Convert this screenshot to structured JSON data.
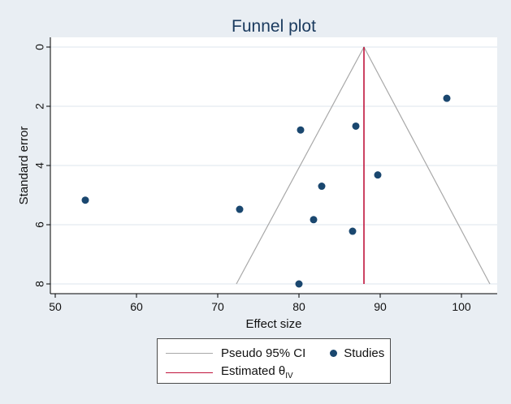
{
  "chart_data": {
    "type": "scatter",
    "title": "Funnel plot",
    "xlabel": "Effect size",
    "ylabel": "Standard error",
    "xlim": [
      50,
      103.5
    ],
    "ylim": [
      0,
      8
    ],
    "y_reversed": true,
    "xticks": [
      50,
      60,
      70,
      80,
      90,
      100
    ],
    "yticks": [
      0,
      2,
      4,
      6,
      8
    ],
    "grid": true,
    "legend_position": "bottom",
    "pooled_estimate": 88.0,
    "funnel": {
      "apex": [
        88.0,
        0
      ],
      "left_base": [
        72.3,
        8
      ],
      "right_base": [
        103.5,
        8
      ]
    },
    "series": [
      {
        "name": "Studies",
        "points": [
          {
            "x": 98.2,
            "y": 1.73
          },
          {
            "x": 87.0,
            "y": 2.67
          },
          {
            "x": 80.2,
            "y": 2.8
          },
          {
            "x": 89.7,
            "y": 4.32
          },
          {
            "x": 82.8,
            "y": 4.7
          },
          {
            "x": 53.7,
            "y": 5.17
          },
          {
            "x": 72.7,
            "y": 5.48
          },
          {
            "x": 81.8,
            "y": 5.83
          },
          {
            "x": 86.6,
            "y": 6.22
          },
          {
            "x": 80.0,
            "y": 8.0
          }
        ]
      }
    ],
    "legend": {
      "ci_label": "Pseudo 95% CI",
      "studies_label": "Studies",
      "estimate_label": "Estimated θ",
      "estimate_subscript": "IV"
    },
    "colors": {
      "background": "#e9eef3",
      "plot_bg": "#ffffff",
      "grid": "#e9eef3",
      "funnel": "#a8a8a8",
      "estimate": "#c0143c",
      "points": "#1a476f",
      "title": "#1a3a5e"
    }
  }
}
